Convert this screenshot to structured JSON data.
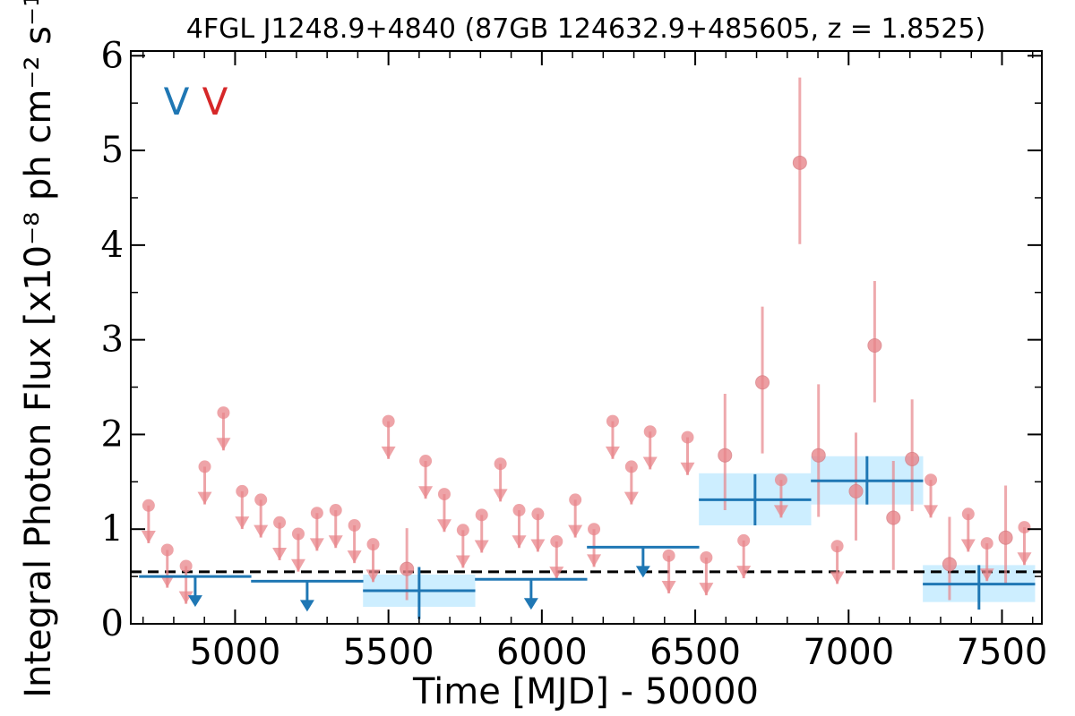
{
  "chart_data": {
    "type": "scatter",
    "title": "4FGL J1248.9+4840 (87GB 124632.9+485605, z = 1.8525)",
    "xlabel": "Time [MJD] - 50000",
    "ylabel": "Integral Photon Flux [x10⁻⁸ ph cm⁻² s⁻¹]",
    "xlim": [
      4660,
      7630
    ],
    "ylim": [
      0,
      6.05
    ],
    "xticks": [
      "5000",
      "5500",
      "6000",
      "6500",
      "7000",
      "7500"
    ],
    "yticks": [
      "0",
      "1",
      "2",
      "3",
      "4",
      "5",
      "6"
    ],
    "legend_marks": [
      {
        "text": "V",
        "color": "#1f77b4"
      },
      {
        "text": "V",
        "color": "#d62728"
      }
    ],
    "reference_line": 0.55,
    "colors": {
      "long_bins": "#1f77b4",
      "short_bins": "#e8868b",
      "band_fill": "#cdeeff",
      "reference": "#000000"
    },
    "long_bins": [
      {
        "x": 4870,
        "xerr": 183,
        "y": 0.5,
        "upper_limit": true
      },
      {
        "x": 5235,
        "xerr": 183,
        "y": 0.45,
        "upper_limit": true
      },
      {
        "x": 5600,
        "xerr": 183,
        "y": 0.35,
        "yerr": [
          0.3,
          0.25
        ],
        "band": [
          0.18,
          0.52
        ]
      },
      {
        "x": 5965,
        "xerr": 183,
        "y": 0.47,
        "upper_limit": true
      },
      {
        "x": 6330,
        "xerr": 183,
        "y": 0.81,
        "upper_limit": true
      },
      {
        "x": 6695,
        "xerr": 183,
        "y": 1.31,
        "yerr": [
          0.27,
          0.27
        ],
        "band": [
          1.04,
          1.59
        ]
      },
      {
        "x": 7060,
        "xerr": 183,
        "y": 1.51,
        "yerr": [
          0.25,
          0.26
        ],
        "band": [
          1.26,
          1.77
        ]
      },
      {
        "x": 7425,
        "xerr": 183,
        "y": 0.42,
        "yerr": [
          0.27,
          0.2
        ],
        "band": [
          0.23,
          0.62
        ]
      }
    ],
    "short_bins": [
      {
        "x": 4718,
        "y": 1.25,
        "upper_limit": true
      },
      {
        "x": 4779,
        "y": 0.78,
        "upper_limit": true
      },
      {
        "x": 4840,
        "y": 0.61,
        "upper_limit": true
      },
      {
        "x": 4901,
        "y": 1.66,
        "upper_limit": true
      },
      {
        "x": 4962,
        "y": 2.23,
        "upper_limit": true
      },
      {
        "x": 5023,
        "y": 1.4,
        "upper_limit": true
      },
      {
        "x": 5084,
        "y": 1.31,
        "upper_limit": true
      },
      {
        "x": 5145,
        "y": 1.07,
        "upper_limit": true
      },
      {
        "x": 5206,
        "y": 0.95,
        "upper_limit": true
      },
      {
        "x": 5267,
        "y": 1.17,
        "upper_limit": true
      },
      {
        "x": 5328,
        "y": 1.2,
        "upper_limit": true
      },
      {
        "x": 5389,
        "y": 1.04,
        "upper_limit": true
      },
      {
        "x": 5450,
        "y": 0.84,
        "upper_limit": true
      },
      {
        "x": 5560,
        "y": 0.58,
        "yerr": [
          0.33,
          0.43
        ]
      },
      {
        "x": 5500,
        "y": 2.14,
        "upper_limit": true
      },
      {
        "x": 5621,
        "y": 1.72,
        "upper_limit": true
      },
      {
        "x": 5682,
        "y": 1.37,
        "upper_limit": true
      },
      {
        "x": 5743,
        "y": 0.99,
        "upper_limit": true
      },
      {
        "x": 5804,
        "y": 1.15,
        "upper_limit": true
      },
      {
        "x": 5865,
        "y": 1.69,
        "upper_limit": true
      },
      {
        "x": 5926,
        "y": 1.2,
        "upper_limit": true
      },
      {
        "x": 5987,
        "y": 1.16,
        "upper_limit": true
      },
      {
        "x": 6048,
        "y": 0.87,
        "upper_limit": true
      },
      {
        "x": 6109,
        "y": 1.31,
        "upper_limit": true
      },
      {
        "x": 6170,
        "y": 1.0,
        "upper_limit": true
      },
      {
        "x": 6231,
        "y": 2.14,
        "upper_limit": true
      },
      {
        "x": 6292,
        "y": 1.66,
        "upper_limit": true
      },
      {
        "x": 6353,
        "y": 2.03,
        "upper_limit": true
      },
      {
        "x": 6414,
        "y": 0.72,
        "upper_limit": true
      },
      {
        "x": 6475,
        "y": 1.97,
        "upper_limit": true
      },
      {
        "x": 6536,
        "y": 0.7,
        "upper_limit": true
      },
      {
        "x": 6597,
        "y": 1.78,
        "yerr": [
          0.58,
          0.65
        ]
      },
      {
        "x": 6658,
        "y": 0.88,
        "upper_limit": true
      },
      {
        "x": 6719,
        "y": 2.55,
        "yerr": [
          0.75,
          0.8
        ]
      },
      {
        "x": 6780,
        "y": 1.52,
        "upper_limit": true
      },
      {
        "x": 6841,
        "y": 4.87,
        "yerr": [
          0.86,
          0.9
        ]
      },
      {
        "x": 6902,
        "y": 1.78,
        "yerr": [
          0.65,
          0.75
        ]
      },
      {
        "x": 6963,
        "y": 0.82,
        "upper_limit": true
      },
      {
        "x": 7024,
        "y": 1.4,
        "yerr": [
          0.52,
          0.62
        ]
      },
      {
        "x": 7085,
        "y": 2.94,
        "yerr": [
          0.6,
          0.68
        ]
      },
      {
        "x": 7146,
        "y": 1.12,
        "yerr": [
          0.55,
          0.6
        ]
      },
      {
        "x": 7207,
        "y": 1.74,
        "yerr": [
          0.55,
          0.63
        ]
      },
      {
        "x": 7268,
        "y": 1.52,
        "upper_limit": true
      },
      {
        "x": 7329,
        "y": 0.63,
        "yerr": [
          0.38,
          0.5
        ]
      },
      {
        "x": 7390,
        "y": 1.16,
        "upper_limit": true
      },
      {
        "x": 7451,
        "y": 0.85,
        "upper_limit": true
      },
      {
        "x": 7512,
        "y": 0.91,
        "yerr": [
          0.48,
          0.55
        ]
      },
      {
        "x": 7573,
        "y": 1.02,
        "upper_limit": true
      }
    ]
  }
}
